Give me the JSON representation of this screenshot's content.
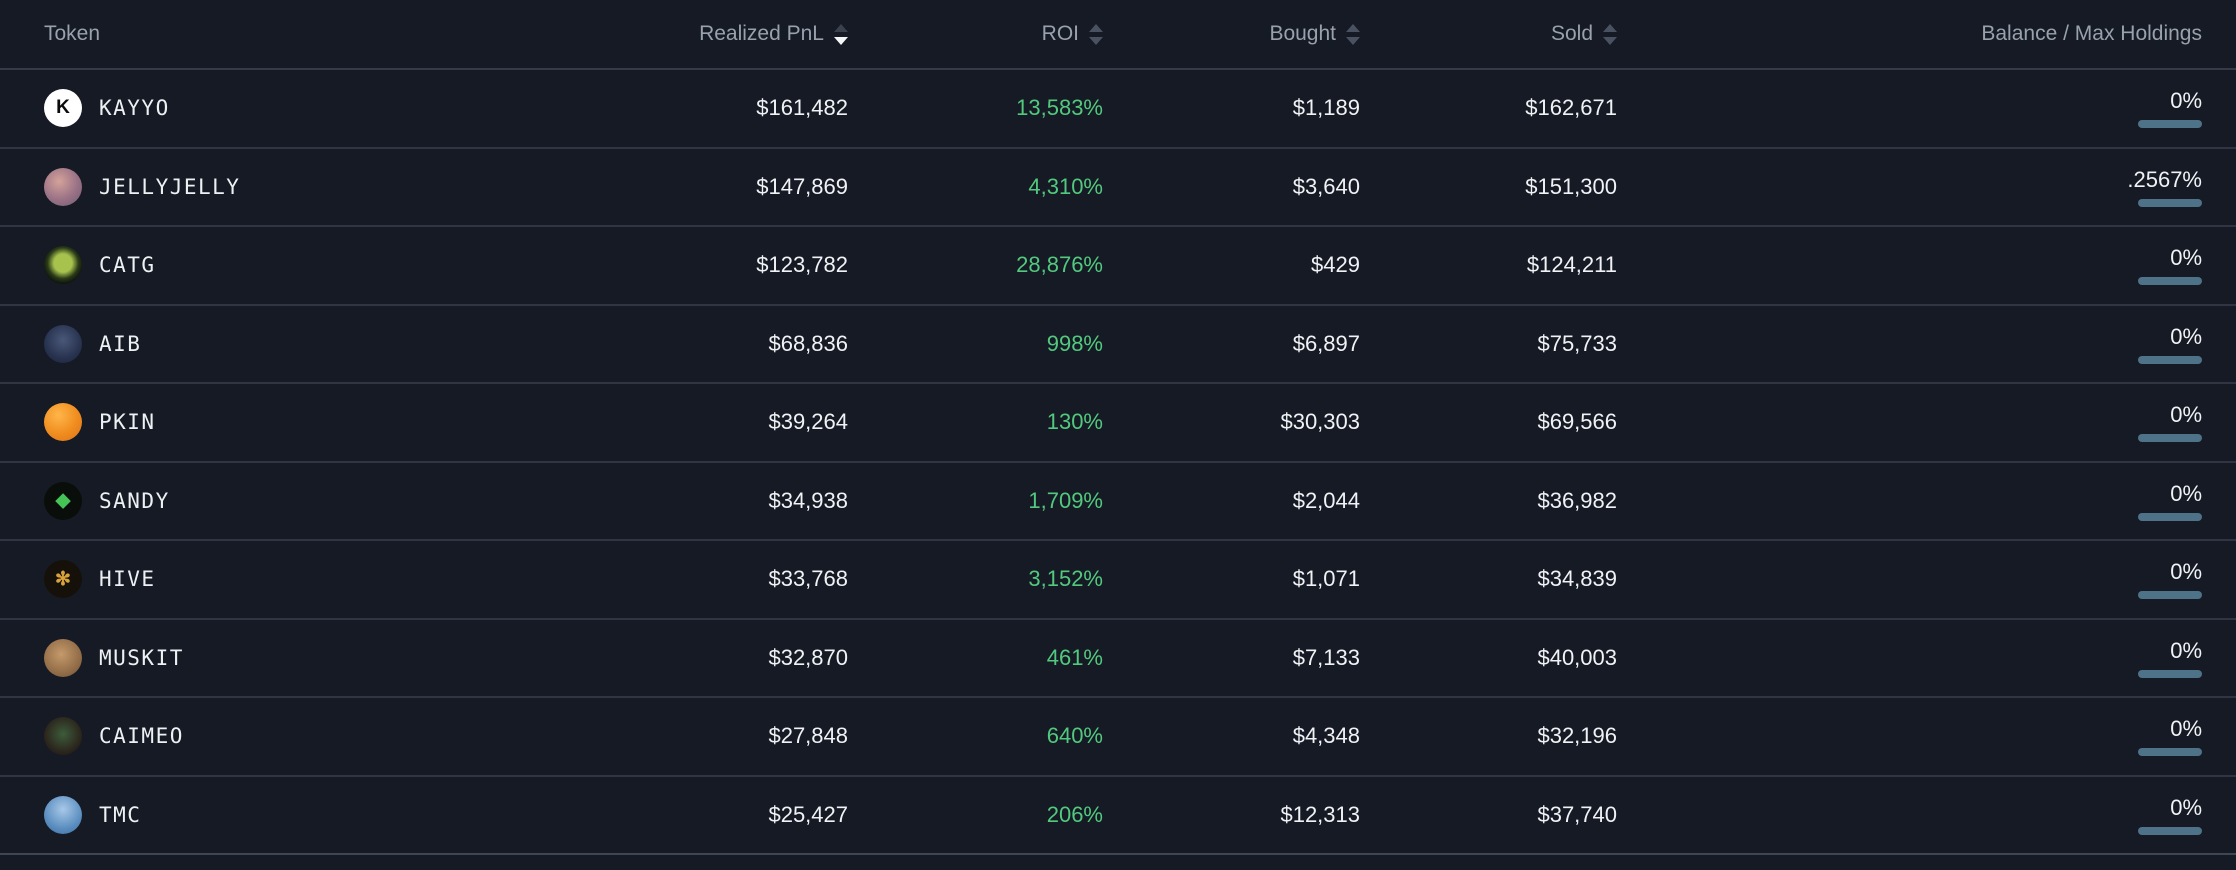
{
  "colors": {
    "background": "#151a24",
    "divider": "#2f3542",
    "header_text": "#99a1ad",
    "value_text": "#f0f2f5",
    "roi_green": "#52c97e",
    "holdings_bar": "#4e7388"
  },
  "table": {
    "columns": [
      {
        "key": "token",
        "label": "Token",
        "align": "left",
        "sortable": false,
        "sort": null
      },
      {
        "key": "realized_pnl",
        "label": "Realized PnL",
        "align": "right",
        "sortable": true,
        "sort": "desc"
      },
      {
        "key": "roi",
        "label": "ROI",
        "align": "right",
        "sortable": true,
        "sort": null
      },
      {
        "key": "bought",
        "label": "Bought",
        "align": "right",
        "sortable": true,
        "sort": null
      },
      {
        "key": "sold",
        "label": "Sold",
        "align": "right",
        "sortable": true,
        "sort": null
      },
      {
        "key": "balance",
        "label": "Balance / Max Holdings",
        "align": "right",
        "sortable": false,
        "sort": null
      }
    ],
    "rows": [
      {
        "token": "KAYYO",
        "realized_pnl": "$161,482",
        "roi": "13,583%",
        "bought": "$1,189",
        "sold": "$162,671",
        "balance": "0%",
        "icon": {
          "name": "kayyo-token-icon",
          "bg": "#ffffff",
          "glyph": "K",
          "fg": "#0b0b0b"
        }
      },
      {
        "token": "JELLYJELLY",
        "realized_pnl": "$147,869",
        "roi": "4,310%",
        "bought": "$3,640",
        "sold": "$151,300",
        "balance": ".2567%",
        "icon": {
          "name": "jellyjelly-token-icon",
          "bg": "radial-gradient(circle at 40% 35%, #d4a29a, #9a7286 55%, #6f5a70)",
          "glyph": "",
          "fg": ""
        }
      },
      {
        "token": "CATG",
        "realized_pnl": "$123,782",
        "roi": "28,876%",
        "bought": "$429",
        "sold": "$124,211",
        "balance": "0%",
        "icon": {
          "name": "catg-token-icon",
          "bg": "radial-gradient(circle at 50% 45%, #a7c24d 0 32%, #2a3a18 55%, #0b0f0a 75%)",
          "glyph": "",
          "fg": ""
        }
      },
      {
        "token": "AIB",
        "realized_pnl": "$68,836",
        "roi": "998%",
        "bought": "$6,897",
        "sold": "$75,733",
        "balance": "0%",
        "icon": {
          "name": "aib-token-icon",
          "bg": "radial-gradient(circle at 50% 40%, #4a5878, #283350 60%, #1a2236)",
          "glyph": "",
          "fg": ""
        }
      },
      {
        "token": "PKIN",
        "realized_pnl": "$39,264",
        "roi": "130%",
        "bought": "$30,303",
        "sold": "$69,566",
        "balance": "0%",
        "icon": {
          "name": "pkin-token-icon",
          "bg": "radial-gradient(circle at 38% 32%, #ffb649, #f08c1f 55%, #d9731a)",
          "glyph": "",
          "fg": ""
        }
      },
      {
        "token": "SANDY",
        "realized_pnl": "$34,938",
        "roi": "1,709%",
        "bought": "$2,044",
        "sold": "$36,982",
        "balance": "0%",
        "icon": {
          "name": "sandy-token-icon",
          "bg": "#0a0e0a",
          "glyph": "◆",
          "fg": "#45c457"
        }
      },
      {
        "token": "HIVE",
        "realized_pnl": "$33,768",
        "roi": "3,152%",
        "bought": "$1,071",
        "sold": "$34,839",
        "balance": "0%",
        "icon": {
          "name": "hive-token-icon",
          "bg": "#15110a",
          "glyph": "✻",
          "fg": "#d9a33c"
        }
      },
      {
        "token": "MUSKIT",
        "realized_pnl": "$32,870",
        "roi": "461%",
        "bought": "$7,133",
        "sold": "$40,003",
        "balance": "0%",
        "icon": {
          "name": "muskit-token-icon",
          "bg": "radial-gradient(circle at 45% 40%, #c59a6b, #8f6a46 65%, #6e4f33)",
          "glyph": "",
          "fg": ""
        }
      },
      {
        "token": "CAIMEO",
        "realized_pnl": "$27,848",
        "roi": "640%",
        "bought": "$4,348",
        "sold": "$32,196",
        "balance": "0%",
        "icon": {
          "name": "caimeo-token-icon",
          "bg": "radial-gradient(circle at 50% 45%, #3c5c3a, #2b241c 65%, #1d1813)",
          "glyph": "",
          "fg": ""
        }
      },
      {
        "token": "TMC",
        "realized_pnl": "$25,427",
        "roi": "206%",
        "bought": "$12,313",
        "sold": "$37,740",
        "balance": "0%",
        "icon": {
          "name": "tmc-token-icon",
          "bg": "radial-gradient(circle at 50% 35%, #a8c8e8, #5c8fc0 60%, #3c6da0)",
          "glyph": "",
          "fg": ""
        }
      }
    ]
  }
}
